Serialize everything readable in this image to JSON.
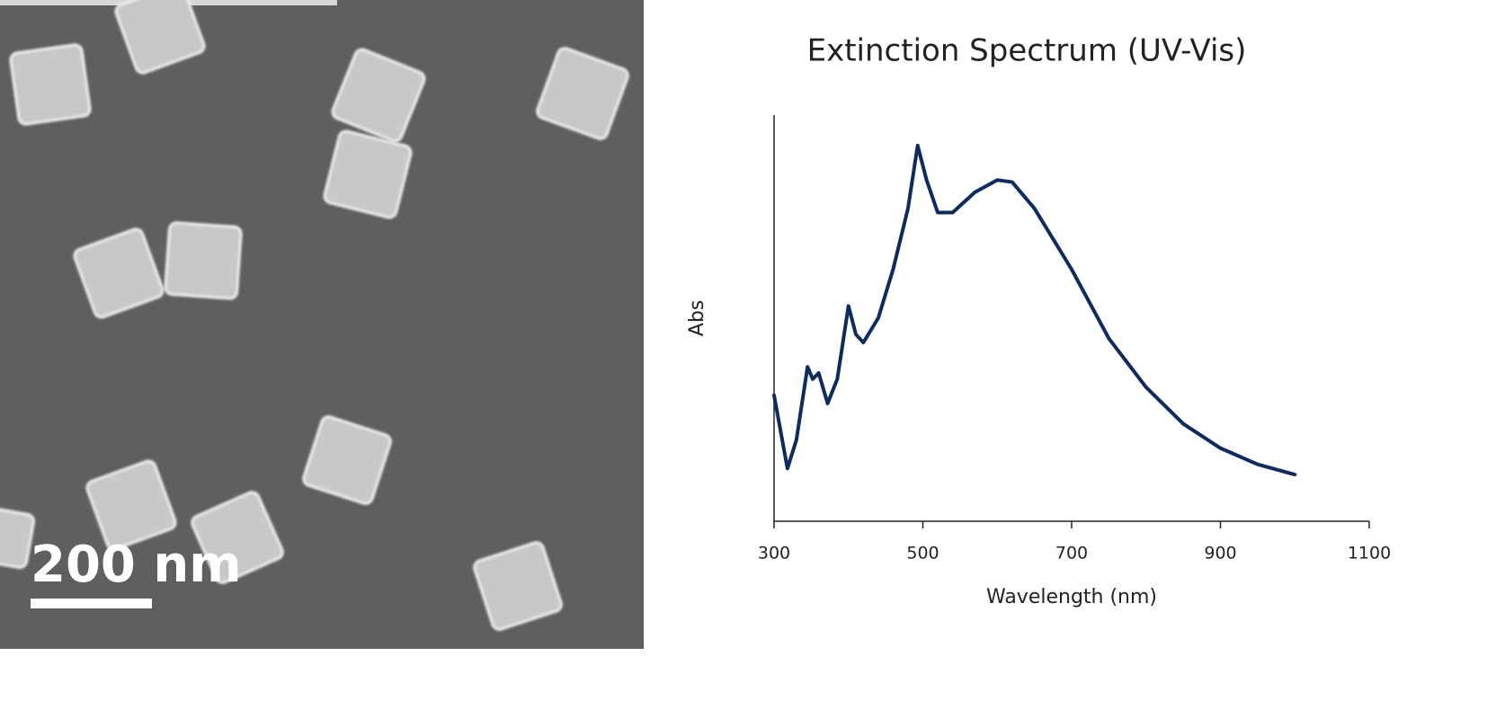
{
  "image": {
    "scale_bar_label": "200 nm"
  },
  "chart_data": {
    "type": "line",
    "title": "Extinction Spectrum (UV-Vis)",
    "x_label": "Wavelength (nm)",
    "y_label": "Abs",
    "x": [
      300,
      318,
      330,
      345,
      352,
      360,
      372,
      385,
      400,
      410,
      420,
      440,
      460,
      480,
      493,
      505,
      520,
      540,
      570,
      600,
      620,
      650,
      700,
      750,
      800,
      850,
      900,
      950,
      1000
    ],
    "values": [
      0.31,
      0.13,
      0.2,
      0.38,
      0.35,
      0.365,
      0.29,
      0.35,
      0.53,
      0.46,
      0.44,
      0.5,
      0.62,
      0.77,
      0.925,
      0.84,
      0.76,
      0.76,
      0.81,
      0.84,
      0.835,
      0.77,
      0.62,
      0.45,
      0.33,
      0.24,
      0.18,
      0.14,
      0.115
    ],
    "color": "#0f2a5e",
    "xlim": [
      300,
      1100
    ],
    "xticks": [
      300,
      500,
      700,
      900,
      1100
    ],
    "ylim": [
      0,
      1
    ]
  }
}
